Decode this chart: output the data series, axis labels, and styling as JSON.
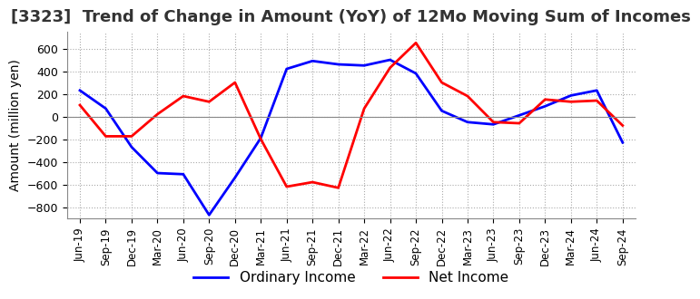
{
  "title": "[3323]  Trend of Change in Amount (YoY) of 12Mo Moving Sum of Incomes",
  "ylabel": "Amount (million yen)",
  "x_labels": [
    "Jun-19",
    "Sep-19",
    "Dec-19",
    "Mar-20",
    "Jun-20",
    "Sep-20",
    "Dec-20",
    "Mar-21",
    "Jun-21",
    "Sep-21",
    "Dec-21",
    "Mar-22",
    "Jun-22",
    "Sep-22",
    "Dec-22",
    "Mar-23",
    "Jun-23",
    "Sep-23",
    "Dec-23",
    "Mar-24",
    "Jun-24",
    "Sep-24"
  ],
  "ordinary_income": [
    230,
    70,
    -270,
    -500,
    -510,
    -870,
    -540,
    -190,
    420,
    490,
    460,
    450,
    500,
    380,
    50,
    -50,
    -70,
    10,
    90,
    185,
    230,
    -230
  ],
  "net_income": [
    100,
    -175,
    -175,
    20,
    180,
    130,
    300,
    -200,
    -620,
    -580,
    -630,
    70,
    430,
    650,
    300,
    180,
    -50,
    -60,
    150,
    130,
    140,
    -80
  ],
  "ordinary_color": "#0000ff",
  "net_color": "#ff0000",
  "ylim": [
    -900,
    750
  ],
  "yticks": [
    -800,
    -600,
    -400,
    -200,
    0,
    200,
    400,
    600
  ],
  "grid_color": "#aaaaaa",
  "background_color": "#ffffff",
  "title_fontsize": 13,
  "legend_fontsize": 11,
  "axis_fontsize": 10
}
